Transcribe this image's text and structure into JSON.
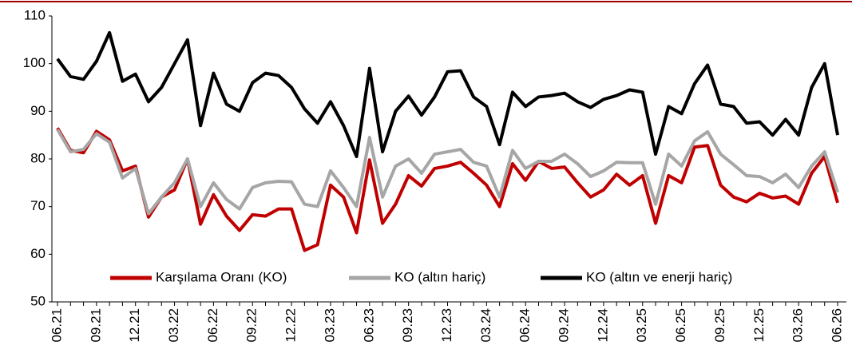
{
  "chart_data": {
    "type": "line",
    "categories": [
      "06.21",
      null,
      null,
      "09.21",
      null,
      null,
      "12.21",
      null,
      null,
      "03.22",
      null,
      null,
      "06.22",
      null,
      null,
      "09.22",
      null,
      null,
      "12.22",
      null,
      null,
      "03.23",
      null,
      null,
      "06.23",
      null,
      null,
      "09.23",
      null,
      null,
      "12.23",
      null,
      null,
      "03.24",
      null,
      null,
      "06.24",
      null,
      null,
      "09.24",
      null,
      null,
      "12.24",
      null,
      null,
      "03.25",
      null,
      null,
      "06.25",
      null,
      null,
      "09.25",
      null,
      null,
      "12.25",
      null,
      null,
      "03.26",
      null,
      null,
      "06.26"
    ],
    "series": [
      {
        "name": "Karşılama Oranı (KO)",
        "color": "#c00000",
        "values": [
          86.5,
          81.8,
          81.3,
          85.8,
          84,
          77.5,
          78.5,
          67.8,
          72,
          73.5,
          80,
          66.3,
          72.5,
          68,
          65,
          68.3,
          68,
          69.5,
          69.5,
          60.8,
          62,
          74.5,
          72,
          64.5,
          79.8,
          66.5,
          70.5,
          76.5,
          74.3,
          78,
          78.5,
          79.3,
          77,
          74.5,
          70,
          79,
          75.5,
          79.5,
          78,
          78.3,
          75,
          72,
          73.5,
          76.8,
          74.5,
          76.5,
          66.5,
          76.5,
          75,
          82.5,
          82.8,
          74.5,
          72,
          71,
          72.8,
          71.8,
          72.2,
          70.5,
          77,
          80.5,
          70.8
        ]
      },
      {
        "name": "KO (altın hariç)",
        "color": "#a6a6a6",
        "values": [
          86.2,
          81.5,
          82,
          85.3,
          83.5,
          76,
          78,
          68.5,
          72,
          75,
          80,
          70,
          75,
          71.5,
          69.5,
          74,
          75,
          75.3,
          75.2,
          70.5,
          70,
          77.5,
          74,
          70,
          84.5,
          72,
          78.5,
          80,
          77,
          81,
          81.5,
          82,
          79.3,
          78.5,
          72,
          81.8,
          78,
          79.5,
          79.5,
          81,
          79,
          76.3,
          77.5,
          79.3,
          79.2,
          79.2,
          70.5,
          81,
          78.5,
          83.8,
          85.7,
          81,
          78.8,
          76.5,
          76.3,
          75,
          76.8,
          74,
          78.5,
          81.5,
          73
        ]
      },
      {
        "name": "KO (altın ve enerji hariç)",
        "color": "#000000",
        "values": [
          101,
          97.3,
          96.7,
          100.5,
          106.5,
          96.3,
          97.8,
          92,
          95,
          100,
          105,
          87,
          98,
          91.5,
          90,
          96,
          98,
          97.5,
          95,
          90.5,
          87.5,
          92,
          87,
          80.5,
          99,
          81.5,
          90,
          93.2,
          89.2,
          93,
          98.3,
          98.5,
          93,
          91,
          83,
          94,
          91,
          93,
          93.3,
          93.8,
          92,
          90.8,
          92.5,
          93.3,
          94.5,
          94,
          81,
          91,
          89.5,
          95.8,
          99.7,
          91.5,
          91,
          87.5,
          87.8,
          85,
          88.3,
          85,
          95,
          100,
          85
        ]
      }
    ],
    "ylim": [
      50,
      110
    ],
    "yticks": [
      50,
      60,
      70,
      80,
      90,
      100,
      110
    ],
    "grid": false,
    "legend": "bottom"
  }
}
